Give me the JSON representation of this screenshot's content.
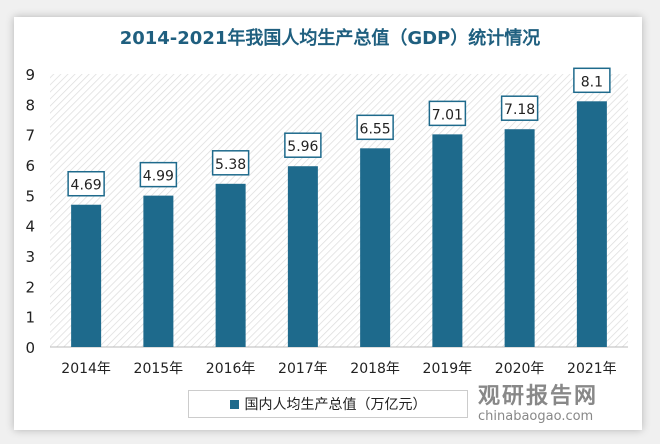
{
  "chart_data": {
    "type": "bar",
    "title": "2014-2021年我国人均生产总值（GDP）统计情况",
    "categories": [
      "2014年",
      "2015年",
      "2016年",
      "2017年",
      "2018年",
      "2019年",
      "2020年",
      "2021年"
    ],
    "series": [
      {
        "name": "国内人均生产总值（万亿元）",
        "values": [
          4.69,
          4.99,
          5.38,
          5.96,
          6.55,
          7.01,
          7.18,
          8.1
        ]
      }
    ],
    "ylim": [
      0,
      9
    ],
    "yticks": [
      0,
      1,
      2,
      3,
      4,
      5,
      6,
      7,
      8,
      9
    ],
    "grid": false,
    "legend": "bottom",
    "bar_color": "#1e6a8c",
    "background": "hatched"
  },
  "watermark": {
    "cn": "观研报告网",
    "en": "chinabaogao.com"
  }
}
